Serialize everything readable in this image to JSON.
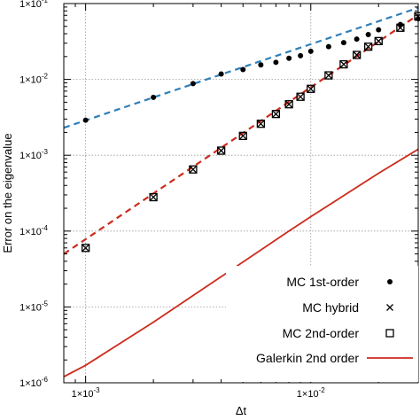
{
  "chart_data": {
    "type": "scatter",
    "title": "",
    "xlabel": "Δt",
    "ylabel": "Error on the eigenvalue",
    "x_scale": "log",
    "y_scale": "log",
    "xlim": [
      0.0008,
      0.03
    ],
    "ylim": [
      1e-06,
      0.1
    ],
    "grid": true,
    "legend_position": "bottom-right",
    "x_ticks": [
      {
        "value": 0.001,
        "mant": "1×10",
        "exp": "-3"
      },
      {
        "value": 0.01,
        "mant": "1×10",
        "exp": "-2"
      }
    ],
    "y_ticks": [
      {
        "value": 1e-06,
        "mant": "1×10",
        "exp": "-6"
      },
      {
        "value": 1e-05,
        "mant": "1×10",
        "exp": "-5"
      },
      {
        "value": 0.0001,
        "mant": "1×10",
        "exp": "-4"
      },
      {
        "value": 0.001,
        "mant": "1×10",
        "exp": "-3"
      },
      {
        "value": 0.01,
        "mant": "1×10",
        "exp": "-2"
      },
      {
        "value": 0.1,
        "mant": "1×10",
        "exp": "-1"
      }
    ],
    "series": [
      {
        "name": "MC 1st-order",
        "marker": "dot",
        "color": "#000000",
        "points": [
          [
            0.001,
            0.0029
          ],
          [
            0.002,
            0.0058
          ],
          [
            0.003,
            0.0088
          ],
          [
            0.004,
            0.0118
          ],
          [
            0.005,
            0.0135
          ],
          [
            0.006,
            0.0155
          ],
          [
            0.007,
            0.0168
          ],
          [
            0.008,
            0.019
          ],
          [
            0.009,
            0.0205
          ],
          [
            0.01,
            0.0235
          ],
          [
            0.012,
            0.027
          ],
          [
            0.014,
            0.0305
          ],
          [
            0.016,
            0.034
          ],
          [
            0.018,
            0.039
          ],
          [
            0.02,
            0.045
          ],
          [
            0.025,
            0.053
          ],
          [
            0.03,
            0.063
          ]
        ]
      },
      {
        "name": "MC hybrid",
        "marker": "cross",
        "color": "#000000",
        "points": [
          [
            0.001,
            6e-05
          ],
          [
            0.002,
            0.00028
          ],
          [
            0.003,
            0.00065
          ],
          [
            0.004,
            0.00115
          ],
          [
            0.005,
            0.0018
          ],
          [
            0.006,
            0.0026
          ],
          [
            0.007,
            0.0035
          ],
          [
            0.008,
            0.0047
          ],
          [
            0.009,
            0.0059
          ],
          [
            0.01,
            0.0075
          ],
          [
            0.012,
            0.0113
          ],
          [
            0.014,
            0.0158
          ],
          [
            0.016,
            0.021
          ],
          [
            0.018,
            0.027
          ],
          [
            0.02,
            0.032
          ],
          [
            0.025,
            0.048
          ],
          [
            0.03,
            0.068
          ]
        ]
      },
      {
        "name": "MC 2nd-order",
        "marker": "square",
        "color": "#000000",
        "points": [
          [
            0.001,
            6e-05
          ],
          [
            0.002,
            0.00028
          ],
          [
            0.003,
            0.00065
          ],
          [
            0.004,
            0.00115
          ],
          [
            0.005,
            0.0018
          ],
          [
            0.006,
            0.0026
          ],
          [
            0.007,
            0.0035
          ],
          [
            0.008,
            0.0047
          ],
          [
            0.009,
            0.0059
          ],
          [
            0.01,
            0.0075
          ],
          [
            0.012,
            0.0113
          ],
          [
            0.014,
            0.0158
          ],
          [
            0.016,
            0.021
          ],
          [
            0.018,
            0.027
          ],
          [
            0.02,
            0.032
          ],
          [
            0.025,
            0.048
          ],
          [
            0.03,
            0.068
          ]
        ]
      },
      {
        "name": "Galerkin 2nd order",
        "marker": "line",
        "color": "#cc2b1d",
        "points": [
          [
            0.0008,
            1.2e-06
          ],
          [
            0.001,
            1.7e-06
          ],
          [
            0.002,
            6.3e-06
          ],
          [
            0.004,
            2.5e-05
          ],
          [
            0.008,
            0.0001
          ],
          [
            0.01,
            0.000155
          ],
          [
            0.02,
            0.00058
          ],
          [
            0.03,
            0.0012
          ]
        ]
      }
    ],
    "fits": [
      {
        "color": "#2f7fb8",
        "dash": true,
        "points": [
          [
            0.0008,
            0.0023
          ],
          [
            0.03,
            0.088
          ]
        ]
      },
      {
        "color": "#cc2b1d",
        "dash": true,
        "points": [
          [
            0.0008,
            5e-05
          ],
          [
            0.03,
            0.071
          ]
        ]
      }
    ]
  }
}
